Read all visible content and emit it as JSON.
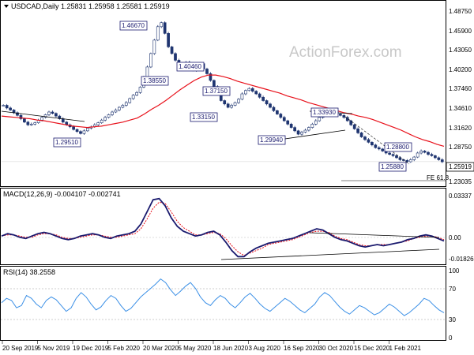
{
  "watermark": "ActionForex.com",
  "chart_data": [
    {
      "type": "candlestick",
      "title": "USDCAD,Daily  1.25831 1.25958 1.25581 1.25919",
      "ylim": [
        1.225,
        1.495
      ],
      "y_ticks": [
        "1.48750",
        "1.45900",
        "1.43050",
        "1.40200",
        "1.37460",
        "1.34610",
        "1.31620",
        "1.28750",
        "1.25919",
        "1.23035"
      ],
      "last_price": "1.25919",
      "close_series": [
        1.343,
        1.339,
        1.336,
        1.332,
        1.328,
        1.323,
        1.318,
        1.314,
        1.315,
        1.317,
        1.321,
        1.325,
        1.329,
        1.333,
        1.331,
        1.327,
        1.323,
        1.318,
        1.314,
        1.311,
        1.307,
        1.304,
        1.301,
        1.305,
        1.309,
        1.311,
        1.314,
        1.317,
        1.321,
        1.325,
        1.329,
        1.333,
        1.336,
        1.34,
        1.343,
        1.347,
        1.353,
        1.358,
        1.362,
        1.37,
        1.385,
        1.4,
        1.42,
        1.44,
        1.46,
        1.466,
        1.45,
        1.43,
        1.42,
        1.41,
        1.405,
        1.4,
        1.407,
        1.405,
        1.395,
        1.4,
        1.405,
        1.397,
        1.39,
        1.38,
        1.371,
        1.36,
        1.35,
        1.345,
        1.34,
        1.343,
        1.347,
        1.352,
        1.36,
        1.365,
        1.368,
        1.364,
        1.36,
        1.355,
        1.35,
        1.345,
        1.34,
        1.335,
        1.33,
        1.325,
        1.32,
        1.315,
        1.31,
        1.305,
        1.3,
        1.303,
        1.306,
        1.31,
        1.315,
        1.32,
        1.325,
        1.33,
        1.333,
        1.334,
        1.333,
        1.33,
        1.328,
        1.325,
        1.32,
        1.314,
        1.308,
        1.302,
        1.296,
        1.292,
        1.288,
        1.284,
        1.28,
        1.278,
        1.275,
        1.272,
        1.27,
        1.268,
        1.265,
        1.262,
        1.261,
        1.259,
        1.262,
        1.266,
        1.272,
        1.275,
        1.273,
        1.27,
        1.268,
        1.265,
        1.262,
        1.259
      ],
      "ma_series": [
        1.327,
        1.326,
        1.325,
        1.324,
        1.323,
        1.321,
        1.32,
        1.318,
        1.316,
        1.314,
        1.312,
        1.311,
        1.31,
        1.311,
        1.312,
        1.314,
        1.316,
        1.318,
        1.321,
        1.324,
        1.33,
        1.337,
        1.343,
        1.35,
        1.358,
        1.366,
        1.373,
        1.38,
        1.385,
        1.388,
        1.388,
        1.386,
        1.383,
        1.379,
        1.376,
        1.373,
        1.37,
        1.367,
        1.364,
        1.361,
        1.357,
        1.354,
        1.351,
        1.347,
        1.344,
        1.341,
        1.338,
        1.335,
        1.332,
        1.33,
        1.327,
        1.325,
        1.322,
        1.318,
        1.314,
        1.31,
        1.306,
        1.301,
        1.296,
        1.292,
        1.289,
        1.285,
        1.282
      ],
      "price_labels": [
        "1.46670",
        "1.38550",
        "1.40460",
        "1.37150",
        "1.33150",
        "1.29510",
        "1.33930",
        "1.29940",
        "1.28800",
        "1.25880"
      ],
      "annotation": "FE 61.8"
    },
    {
      "type": "line",
      "title": "MACD(12,26,9) -0.004107 -0.002741",
      "ylim": [
        -0.022,
        0.036
      ],
      "y_ticks": [
        "0.03337",
        "0.00",
        "-0.018262"
      ],
      "macd_series": [
        0.0,
        0.002,
        0.001,
        -0.001,
        -0.002,
        0.0,
        0.002,
        0.003,
        0.002,
        0.0,
        -0.002,
        -0.003,
        -0.002,
        0.0,
        0.001,
        0.002,
        0.001,
        -0.001,
        -0.002,
        0.0,
        0.001,
        0.002,
        0.004,
        0.01,
        0.02,
        0.03,
        0.031,
        0.025,
        0.015,
        0.008,
        0.004,
        0.002,
        0.0,
        0.001,
        0.003,
        0.004,
        0.001,
        -0.005,
        -0.012,
        -0.017,
        -0.017,
        -0.013,
        -0.01,
        -0.008,
        -0.006,
        -0.005,
        -0.004,
        -0.003,
        -0.002,
        0.0,
        0.002,
        0.004,
        0.006,
        0.005,
        0.002,
        -0.001,
        -0.003,
        -0.004,
        -0.006,
        -0.008,
        -0.009,
        -0.008,
        -0.007,
        -0.008,
        -0.007,
        -0.006,
        -0.005,
        -0.003,
        -0.002,
        0.0,
        0.001,
        0.0,
        -0.002,
        -0.004
      ],
      "signal_series": [
        0.0,
        0.001,
        0.001,
        0.0,
        -0.001,
        -0.001,
        0.001,
        0.002,
        0.002,
        0.001,
        -0.001,
        -0.002,
        -0.002,
        -0.001,
        0.0,
        0.001,
        0.001,
        0.0,
        -0.001,
        -0.001,
        0.0,
        0.001,
        0.002,
        0.006,
        0.014,
        0.023,
        0.028,
        0.027,
        0.02,
        0.012,
        0.007,
        0.004,
        0.001,
        0.001,
        0.002,
        0.003,
        0.002,
        -0.002,
        -0.008,
        -0.013,
        -0.016,
        -0.014,
        -0.012,
        -0.01,
        -0.007,
        -0.006,
        -0.005,
        -0.004,
        -0.003,
        -0.001,
        0.001,
        0.003,
        0.004,
        0.004,
        0.003,
        0.0,
        -0.002,
        -0.003,
        -0.005,
        -0.007,
        -0.008,
        -0.008,
        -0.007,
        -0.007,
        -0.007,
        -0.006,
        -0.005,
        -0.004,
        -0.002,
        -0.001,
        0.0,
        0.0,
        -0.001,
        -0.003
      ]
    },
    {
      "type": "line",
      "title": "RSI(14) 38.2558",
      "ylim": [
        0,
        100
      ],
      "y_ticks": [
        "100",
        "70",
        "30",
        "0"
      ],
      "series": [
        52,
        58,
        55,
        45,
        48,
        62,
        58,
        50,
        45,
        55,
        60,
        56,
        48,
        40,
        45,
        58,
        66,
        60,
        50,
        42,
        46,
        55,
        62,
        58,
        48,
        40,
        44,
        52,
        60,
        66,
        72,
        78,
        85,
        80,
        70,
        62,
        68,
        75,
        80,
        72,
        60,
        52,
        48,
        56,
        62,
        58,
        50,
        45,
        52,
        60,
        65,
        58,
        50,
        44,
        40,
        46,
        52,
        58,
        54,
        48,
        42,
        38,
        44,
        50,
        60,
        66,
        62,
        54,
        46,
        40,
        36,
        42,
        48,
        45,
        40,
        35,
        38,
        44,
        50,
        46,
        40,
        34,
        38,
        44,
        50,
        58,
        55,
        48,
        42,
        38
      ]
    }
  ],
  "x_axis": {
    "labels": [
      "20 Sep 2019",
      "5 Nov 2019",
      "19 Dec 2019",
      "5 Feb 2020",
      "20 Mar 2020",
      "5 May 2020",
      "18 Jun 2020",
      "3 Aug 2020",
      "16 Sep 2020",
      "30 Oct 2020",
      "15 Dec 2020",
      "1 Feb 2021"
    ]
  }
}
